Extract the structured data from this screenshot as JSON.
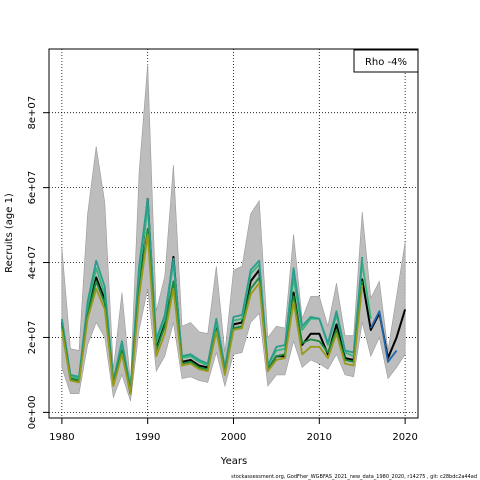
{
  "chart_data": {
    "type": "line",
    "title": "",
    "xlabel": "Years",
    "ylabel": "Recruits (age 1)",
    "xlim": [
      1978.5,
      2021.5
    ],
    "ylim": [
      -1500000,
      97000000
    ],
    "x_ticks": [
      1980,
      1990,
      2000,
      2010,
      2020
    ],
    "x_tick_labels": [
      "1980",
      "1990",
      "2000",
      "2010",
      "2020"
    ],
    "y_ticks": [
      0,
      20000000,
      40000000,
      60000000,
      80000000
    ],
    "y_tick_labels": [
      "0e+00",
      "2e+07",
      "4e+07",
      "6e+07",
      "8e+07"
    ],
    "grid": true,
    "legend_text": "Rho -4%",
    "legend_position": "top-right",
    "footer": "stockassessment.org, GodFher_WGBFAS_2021_new_data_1980_2020, r14275 , git: c28bdc2a44ad",
    "years": [
      1980,
      1981,
      1982,
      1983,
      1984,
      1985,
      1986,
      1987,
      1988,
      1989,
      1990,
      1991,
      1992,
      1993,
      1994,
      1995,
      1996,
      1997,
      1998,
      1999,
      2000,
      2001,
      2002,
      2003,
      2004,
      2005,
      2006,
      2007,
      2008,
      2009,
      2010,
      2011,
      2012,
      2013,
      2014,
      2015,
      2016,
      2017,
      2018,
      2019,
      2020
    ],
    "ci_upper": [
      44000000,
      17000000,
      16500000,
      53000000,
      71000000,
      56000000,
      11500000,
      32000000,
      8000000,
      64000000,
      93000000,
      27000000,
      36500000,
      66000000,
      23000000,
      24000000,
      21500000,
      21000000,
      39000000,
      16000000,
      38000000,
      39000000,
      53000000,
      56500000,
      20000000,
      23000000,
      22500000,
      47500000,
      25000000,
      31000000,
      31000000,
      23000000,
      34500000,
      20500000,
      20500000,
      53500000,
      30500000,
      35000000,
      16500000,
      31000000,
      45500000
    ],
    "ci_lower": [
      12000000,
      5000000,
      5000000,
      18000000,
      24000000,
      20000000,
      4000000,
      10000000,
      3000000,
      22000000,
      33000000,
      11000000,
      15000000,
      24000000,
      9000000,
      9500000,
      8500000,
      8000000,
      16000000,
      7000000,
      15500000,
      16000000,
      24000000,
      26500000,
      7000000,
      10000000,
      10000000,
      19000000,
      12000000,
      14000000,
      13000000,
      11500000,
      15500000,
      10000000,
      9500000,
      24000000,
      15000000,
      20000000,
      9000000,
      12000000,
      15500000
    ],
    "series": [
      {
        "color": "#000000",
        "values": [
          24000000,
          9000000,
          8500000,
          27000000,
          36000000,
          30000000,
          7500000,
          17000000,
          5000000,
          34000000,
          57000000,
          17000000,
          24000000,
          41500000,
          13500000,
          14000000,
          12500000,
          12000000,
          23500000,
          11000000,
          23500000,
          24000000,
          35000000,
          38000000,
          11500000,
          15000000,
          15000000,
          32000000,
          18000000,
          21000000,
          21000000,
          15500000,
          23500000,
          14500000,
          14000000,
          35500000,
          22000000,
          26500000,
          14500000,
          20000000,
          27500000
        ]
      },
      {
        "color": "#2166ac",
        "values": [
          null,
          null,
          null,
          null,
          null,
          null,
          null,
          null,
          null,
          null,
          null,
          null,
          null,
          null,
          null,
          null,
          null,
          null,
          null,
          null,
          null,
          null,
          null,
          null,
          null,
          null,
          null,
          null,
          null,
          null,
          null,
          null,
          null,
          null,
          null,
          null,
          22500000,
          27000000,
          13500000,
          16500000,
          null
        ]
      },
      {
        "color": "#35b779",
        "values": [
          24500000,
          9500000,
          9000000,
          28000000,
          38500000,
          31500000,
          8000000,
          18000000,
          6000000,
          36500000,
          55000000,
          18500000,
          25000000,
          40000000,
          14500000,
          15000000,
          13500000,
          12500000,
          24000000,
          11500000,
          24500000,
          25000000,
          37000000,
          39500000,
          12500000,
          16500000,
          17000000,
          36000000,
          22000000,
          25000000,
          25000000,
          18000000,
          26000000,
          16000000,
          15000000,
          40000000,
          25000000,
          null,
          null,
          null,
          null
        ]
      },
      {
        "color": "#2a9d8f",
        "values": [
          25000000,
          10000000,
          9500000,
          29500000,
          40500000,
          33500000,
          8500000,
          19000000,
          6500000,
          39000000,
          57000000,
          19500000,
          26000000,
          41000000,
          15000000,
          15500000,
          14000000,
          13000000,
          25000000,
          12000000,
          25500000,
          26000000,
          38000000,
          40500000,
          12500000,
          17500000,
          18000000,
          38500000,
          23000000,
          25500000,
          25000000,
          18500000,
          27000000,
          16500000,
          16000000,
          41500000,
          null,
          null,
          null,
          null,
          null
        ]
      },
      {
        "color": "#1a8a3a",
        "values": [
          23000000,
          9000000,
          8500000,
          26000000,
          35000000,
          29000000,
          7500000,
          16500000,
          5500000,
          33000000,
          49000000,
          16500000,
          23000000,
          35000000,
          13000000,
          13500000,
          12000000,
          11500000,
          22000000,
          10500000,
          22500000,
          23000000,
          33000000,
          36000000,
          11500000,
          15000000,
          15500000,
          31000000,
          18500000,
          19500000,
          19000000,
          16000000,
          22000000,
          14000000,
          13500000,
          35000000,
          null,
          null,
          null,
          null,
          null
        ]
      },
      {
        "color": "#9a9a1a",
        "values": [
          22000000,
          8500000,
          8000000,
          25000000,
          33000000,
          27500000,
          7000000,
          15500000,
          5000000,
          31000000,
          47500000,
          15000000,
          21000000,
          33000000,
          12500000,
          13000000,
          11500000,
          11000000,
          21500000,
          10000000,
          22000000,
          22500000,
          31500000,
          34500000,
          11000000,
          14000000,
          14500000,
          29500000,
          15500000,
          17500000,
          17500000,
          14500000,
          21000000,
          13000000,
          12500000,
          34000000,
          null,
          null,
          null,
          null,
          null
        ]
      }
    ]
  }
}
